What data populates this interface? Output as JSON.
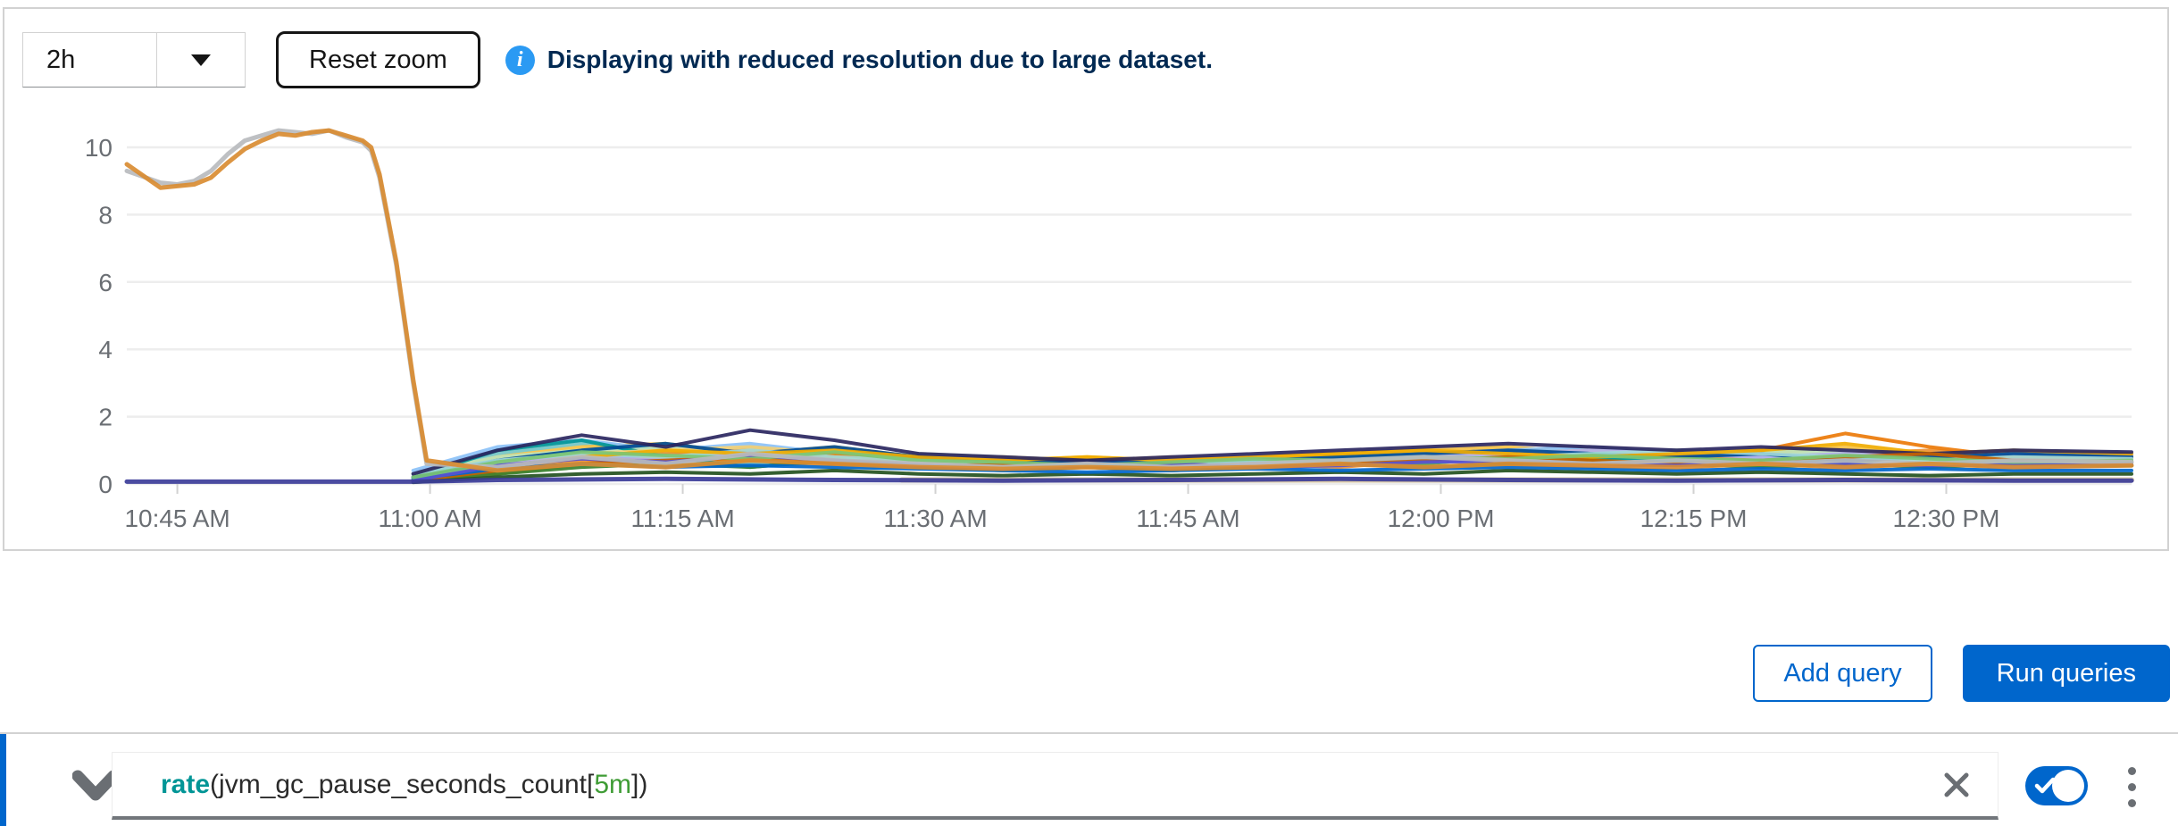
{
  "toolbar": {
    "timespan_value": "2h",
    "reset_zoom_label": "Reset zoom",
    "info_message": "Displaying with reduced resolution due to large dataset."
  },
  "actions": {
    "add_query_label": "Add query",
    "run_queries_label": "Run queries"
  },
  "query_row": {
    "expression": "rate(jvm_gc_pause_seconds_count[5m])",
    "expression_parts": [
      {
        "text": "rate",
        "type": "function"
      },
      {
        "text": "(jvm_gc_pause_seconds_count[",
        "type": "plain"
      },
      {
        "text": "5m",
        "type": "duration"
      },
      {
        "text": "])",
        "type": "plain"
      }
    ],
    "enabled": true
  },
  "colors": {
    "accent": "#0066cc",
    "info_icon": "#2b9af3",
    "info_text": "#002952",
    "axis_text": "#6a6e73",
    "gridline": "#ededed",
    "icon_gray": "#6a6e73"
  },
  "chart_data": {
    "type": "line",
    "title": "",
    "xlabel": "",
    "ylabel": "",
    "grid": true,
    "legend": "none",
    "x_tick_labels": [
      "10:45 AM",
      "11:00 AM",
      "11:15 AM",
      "11:30 AM",
      "11:45 AM",
      "12:00 PM",
      "12:15 PM",
      "12:30 PM"
    ],
    "x_tick_minutes_after_1040am": [
      5,
      20,
      35,
      50,
      65,
      80,
      95,
      110
    ],
    "y_ticks": [
      0,
      2,
      4,
      6,
      8,
      10
    ],
    "ylim": [
      0,
      10.8
    ],
    "t_domain": [
      2,
      121
    ],
    "cluster_t": [
      19,
      24,
      29,
      34,
      39,
      44,
      49,
      54,
      59,
      64,
      69,
      74,
      79,
      84,
      89,
      94,
      99,
      104,
      109,
      114,
      121
    ],
    "series": [
      {
        "name": "series-blue",
        "color": "#519de9",
        "values": [
          0.2,
          0.7,
          1.0,
          0.8,
          1.1,
          0.9,
          0.7,
          0.6,
          0.7,
          0.6,
          0.7,
          0.8,
          0.9,
          1.0,
          0.9,
          0.8,
          0.9,
          0.8,
          0.7,
          0.8,
          0.75
        ]
      },
      {
        "name": "series-green",
        "color": "#4cb140",
        "values": [
          0.1,
          0.5,
          0.8,
          1.0,
          0.7,
          0.9,
          0.8,
          0.5,
          0.6,
          0.5,
          0.6,
          0.7,
          0.6,
          0.8,
          0.7,
          0.9,
          0.8,
          0.6,
          0.9,
          0.7,
          0.8
        ]
      },
      {
        "name": "series-cyan-light",
        "color": "#73c5c5",
        "values": [
          0.3,
          0.9,
          1.2,
          0.9,
          0.6,
          0.8,
          0.7,
          0.7,
          0.5,
          0.6,
          0.5,
          0.6,
          0.8,
          0.7,
          1.0,
          0.8,
          0.7,
          0.9,
          0.6,
          0.8,
          0.7
        ]
      },
      {
        "name": "series-gold",
        "color": "#f4c145",
        "values": [
          0.2,
          0.8,
          1.1,
          1.2,
          0.9,
          1.1,
          0.8,
          0.7,
          0.8,
          0.7,
          0.8,
          0.9,
          1.0,
          1.1,
          0.9,
          1.0,
          0.9,
          1.1,
          0.8,
          0.9,
          0.85
        ]
      },
      {
        "name": "series-orange-light",
        "color": "#ef9234",
        "values": [
          0.1,
          0.4,
          0.7,
          0.9,
          1.0,
          0.8,
          0.6,
          0.5,
          0.6,
          0.7,
          0.6,
          0.5,
          0.7,
          0.8,
          0.9,
          0.7,
          0.8,
          0.9,
          1.0,
          0.8,
          0.7
        ]
      },
      {
        "name": "series-purple",
        "color": "#8481dd",
        "values": [
          0.15,
          0.5,
          0.9,
          0.7,
          0.8,
          0.6,
          0.5,
          0.6,
          0.5,
          0.4,
          0.5,
          0.6,
          0.7,
          0.6,
          0.5,
          0.6,
          0.7,
          0.5,
          0.6,
          0.5,
          0.55
        ]
      },
      {
        "name": "series-blue-light",
        "color": "#8bc1f7",
        "values": [
          0.4,
          1.1,
          1.3,
          1.0,
          1.2,
          0.9,
          0.8,
          0.7,
          0.6,
          0.7,
          0.8,
          0.7,
          0.9,
          1.0,
          1.1,
          0.9,
          0.8,
          0.7,
          0.9,
          1.0,
          0.9
        ]
      },
      {
        "name": "series-green-light",
        "color": "#bde2b9",
        "values": [
          0.3,
          0.8,
          1.0,
          1.1,
          0.8,
          0.7,
          0.9,
          0.8,
          0.7,
          0.6,
          0.7,
          0.8,
          0.9,
          0.8,
          0.7,
          0.9,
          1.0,
          0.9,
          0.8,
          0.7,
          0.75
        ]
      },
      {
        "name": "series-teal",
        "color": "#009596",
        "values": [
          0.2,
          1.0,
          1.3,
          0.8,
          0.5,
          0.7,
          0.6,
          0.5,
          0.6,
          0.5,
          0.6,
          0.7,
          0.8,
          0.9,
          0.8,
          0.7,
          0.6,
          0.8,
          0.7,
          0.6,
          0.65
        ]
      },
      {
        "name": "series-gold-light",
        "color": "#f6d173",
        "values": [
          0.1,
          0.6,
          0.9,
          1.0,
          1.1,
          0.9,
          0.7,
          0.8,
          0.7,
          0.8,
          0.7,
          0.6,
          0.8,
          0.9,
          1.0,
          0.8,
          0.9,
          0.8,
          0.7,
          0.9,
          0.8
        ]
      },
      {
        "name": "series-orange",
        "color": "#ec7a08",
        "values": [
          0.1,
          0.3,
          0.6,
          0.8,
          0.7,
          0.9,
          0.6,
          0.7,
          0.6,
          0.5,
          0.6,
          0.7,
          0.8,
          0.7,
          0.9,
          0.8,
          1.0,
          1.5,
          1.1,
          0.8,
          0.75
        ]
      },
      {
        "name": "series-purple-light",
        "color": "#b2b0ea",
        "values": [
          0.2,
          0.6,
          0.8,
          0.7,
          0.9,
          0.7,
          0.6,
          0.5,
          0.6,
          0.7,
          0.6,
          0.7,
          0.8,
          0.9,
          1.0,
          0.9,
          0.8,
          0.9,
          0.8,
          0.9,
          0.85
        ]
      },
      {
        "name": "series-green-dark",
        "color": "#38812f",
        "values": [
          0.1,
          0.3,
          0.5,
          0.6,
          0.5,
          0.7,
          0.5,
          0.4,
          0.5,
          0.4,
          0.5,
          0.6,
          0.5,
          0.6,
          0.7,
          0.6,
          0.5,
          0.6,
          0.5,
          0.6,
          0.55
        ]
      },
      {
        "name": "series-blue-dark",
        "color": "#004b95",
        "values": [
          0.2,
          0.7,
          1.0,
          1.2,
          0.9,
          1.1,
          0.8,
          0.6,
          0.7,
          0.6,
          0.7,
          0.8,
          0.9,
          1.0,
          0.9,
          0.8,
          0.9,
          0.7,
          0.8,
          0.9,
          0.8
        ]
      },
      {
        "name": "series-cyan-pale",
        "color": "#a2d9d9",
        "values": [
          0.3,
          0.7,
          0.9,
          0.8,
          1.0,
          0.8,
          0.7,
          0.6,
          0.5,
          0.6,
          0.7,
          0.6,
          0.7,
          0.8,
          0.9,
          1.0,
          0.9,
          0.8,
          0.7,
          0.8,
          0.75
        ]
      },
      {
        "name": "series-gold-dark",
        "color": "#f0ab00",
        "values": [
          0.1,
          0.5,
          0.8,
          1.0,
          0.9,
          1.0,
          0.8,
          0.7,
          0.8,
          0.7,
          0.8,
          0.9,
          1.0,
          0.9,
          0.8,
          0.9,
          1.0,
          1.2,
          0.9,
          1.0,
          0.9
        ]
      },
      {
        "name": "series-navy",
        "color": "#2a265f",
        "values": [
          0.3,
          1.0,
          1.45,
          1.1,
          1.6,
          1.3,
          0.9,
          0.8,
          0.7,
          0.8,
          0.9,
          1.0,
          1.1,
          1.2,
          1.1,
          1.0,
          1.1,
          1.0,
          0.9,
          1.0,
          0.95
        ]
      },
      {
        "name": "series-brown",
        "color": "#c46100",
        "values": [
          0.1,
          0.4,
          0.6,
          0.7,
          0.8,
          0.6,
          0.5,
          0.6,
          0.5,
          0.6,
          0.5,
          0.6,
          0.7,
          0.8,
          0.7,
          0.6,
          0.7,
          0.8,
          0.9,
          0.7,
          0.65
        ]
      },
      {
        "name": "series-green-darkest",
        "color": "#23511e",
        "values": [
          0.05,
          0.2,
          0.3,
          0.35,
          0.3,
          0.4,
          0.3,
          0.25,
          0.3,
          0.25,
          0.3,
          0.35,
          0.3,
          0.4,
          0.35,
          0.3,
          0.35,
          0.3,
          0.25,
          0.3,
          0.3
        ]
      },
      {
        "name": "series-blue-brand",
        "color": "#0066cc",
        "values": [
          0.15,
          0.45,
          0.6,
          0.5,
          0.55,
          0.5,
          0.45,
          0.4,
          0.35,
          0.4,
          0.45,
          0.4,
          0.45,
          0.5,
          0.45,
          0.4,
          0.45,
          0.4,
          0.45,
          0.4,
          0.4
        ]
      },
      {
        "name": "series-purple-mid",
        "color": "#5752d1",
        "values": [
          0.1,
          0.55,
          0.75,
          0.65,
          0.85,
          0.7,
          0.55,
          0.45,
          0.55,
          0.6,
          0.5,
          0.55,
          0.65,
          0.7,
          0.6,
          0.55,
          0.65,
          0.6,
          0.55,
          0.6,
          0.6
        ]
      },
      {
        "name": "series-green-mid",
        "color": "#7cc674",
        "values": [
          0.2,
          0.65,
          0.95,
          0.85,
          0.75,
          0.95,
          0.7,
          0.65,
          0.55,
          0.65,
          0.75,
          0.7,
          0.8,
          0.75,
          0.85,
          0.75,
          0.7,
          0.85,
          0.75,
          0.65,
          0.7
        ]
      },
      {
        "name": "series-tan-baseline",
        "color": "#d9c8a2",
        "width": 6,
        "t": [
          48,
          60,
          80,
          100,
          110,
          121
        ],
        "values": [
          0.12,
          0.12,
          0.12,
          0.12,
          0.12,
          0.12
        ]
      },
      {
        "name": "series-purple-flat",
        "color": "#3c3d99",
        "width": 5,
        "t": [
          2,
          6,
          10,
          14,
          18,
          19,
          24,
          34,
          44,
          54,
          64,
          74,
          84,
          94,
          104,
          114,
          121
        ],
        "values": [
          0.07,
          0.07,
          0.07,
          0.07,
          0.07,
          0.07,
          0.12,
          0.15,
          0.12,
          0.1,
          0.12,
          0.15,
          0.12,
          0.1,
          0.12,
          0.1,
          0.1
        ]
      },
      {
        "name": "series-gray-peak",
        "color": "#b8bbbe",
        "width": 5,
        "t": [
          2,
          4,
          5,
          6,
          7,
          8,
          9,
          10,
          11,
          12,
          13,
          14,
          15,
          16,
          16.5,
          17,
          18,
          19,
          19.8,
          24,
          29,
          34,
          39,
          44,
          49,
          54,
          59,
          64,
          69,
          74,
          79,
          84,
          89,
          94,
          99,
          104,
          109,
          114,
          121
        ],
        "values": [
          9.3,
          8.95,
          8.9,
          9.0,
          9.3,
          9.8,
          10.2,
          10.35,
          10.5,
          10.45,
          10.4,
          10.5,
          10.3,
          10.15,
          9.9,
          9.1,
          6.5,
          3.0,
          0.6,
          0.5,
          0.8,
          0.6,
          0.9,
          0.7,
          0.6,
          0.5,
          0.6,
          0.5,
          0.6,
          0.7,
          0.8,
          0.7,
          0.6,
          0.7,
          0.6,
          0.7,
          0.6,
          0.7,
          0.65
        ]
      },
      {
        "name": "series-orange-peak",
        "color": "#d98c32",
        "width": 5,
        "t": [
          2,
          4,
          5,
          6,
          7,
          8,
          9,
          10,
          11,
          12,
          13,
          14,
          15,
          16,
          16.5,
          17,
          18,
          19,
          19.8,
          24,
          29,
          34,
          39,
          44,
          49,
          54,
          59,
          64,
          69,
          74,
          79,
          84,
          89,
          94,
          99,
          104,
          109,
          114,
          121
        ],
        "values": [
          9.5,
          8.8,
          8.85,
          8.9,
          9.1,
          9.55,
          9.95,
          10.2,
          10.4,
          10.35,
          10.45,
          10.5,
          10.35,
          10.2,
          10.0,
          9.2,
          6.6,
          3.1,
          0.7,
          0.4,
          0.6,
          0.5,
          0.7,
          0.6,
          0.5,
          0.45,
          0.5,
          0.45,
          0.5,
          0.6,
          0.5,
          0.6,
          0.55,
          0.5,
          0.6,
          0.5,
          0.6,
          0.5,
          0.55
        ]
      }
    ]
  }
}
